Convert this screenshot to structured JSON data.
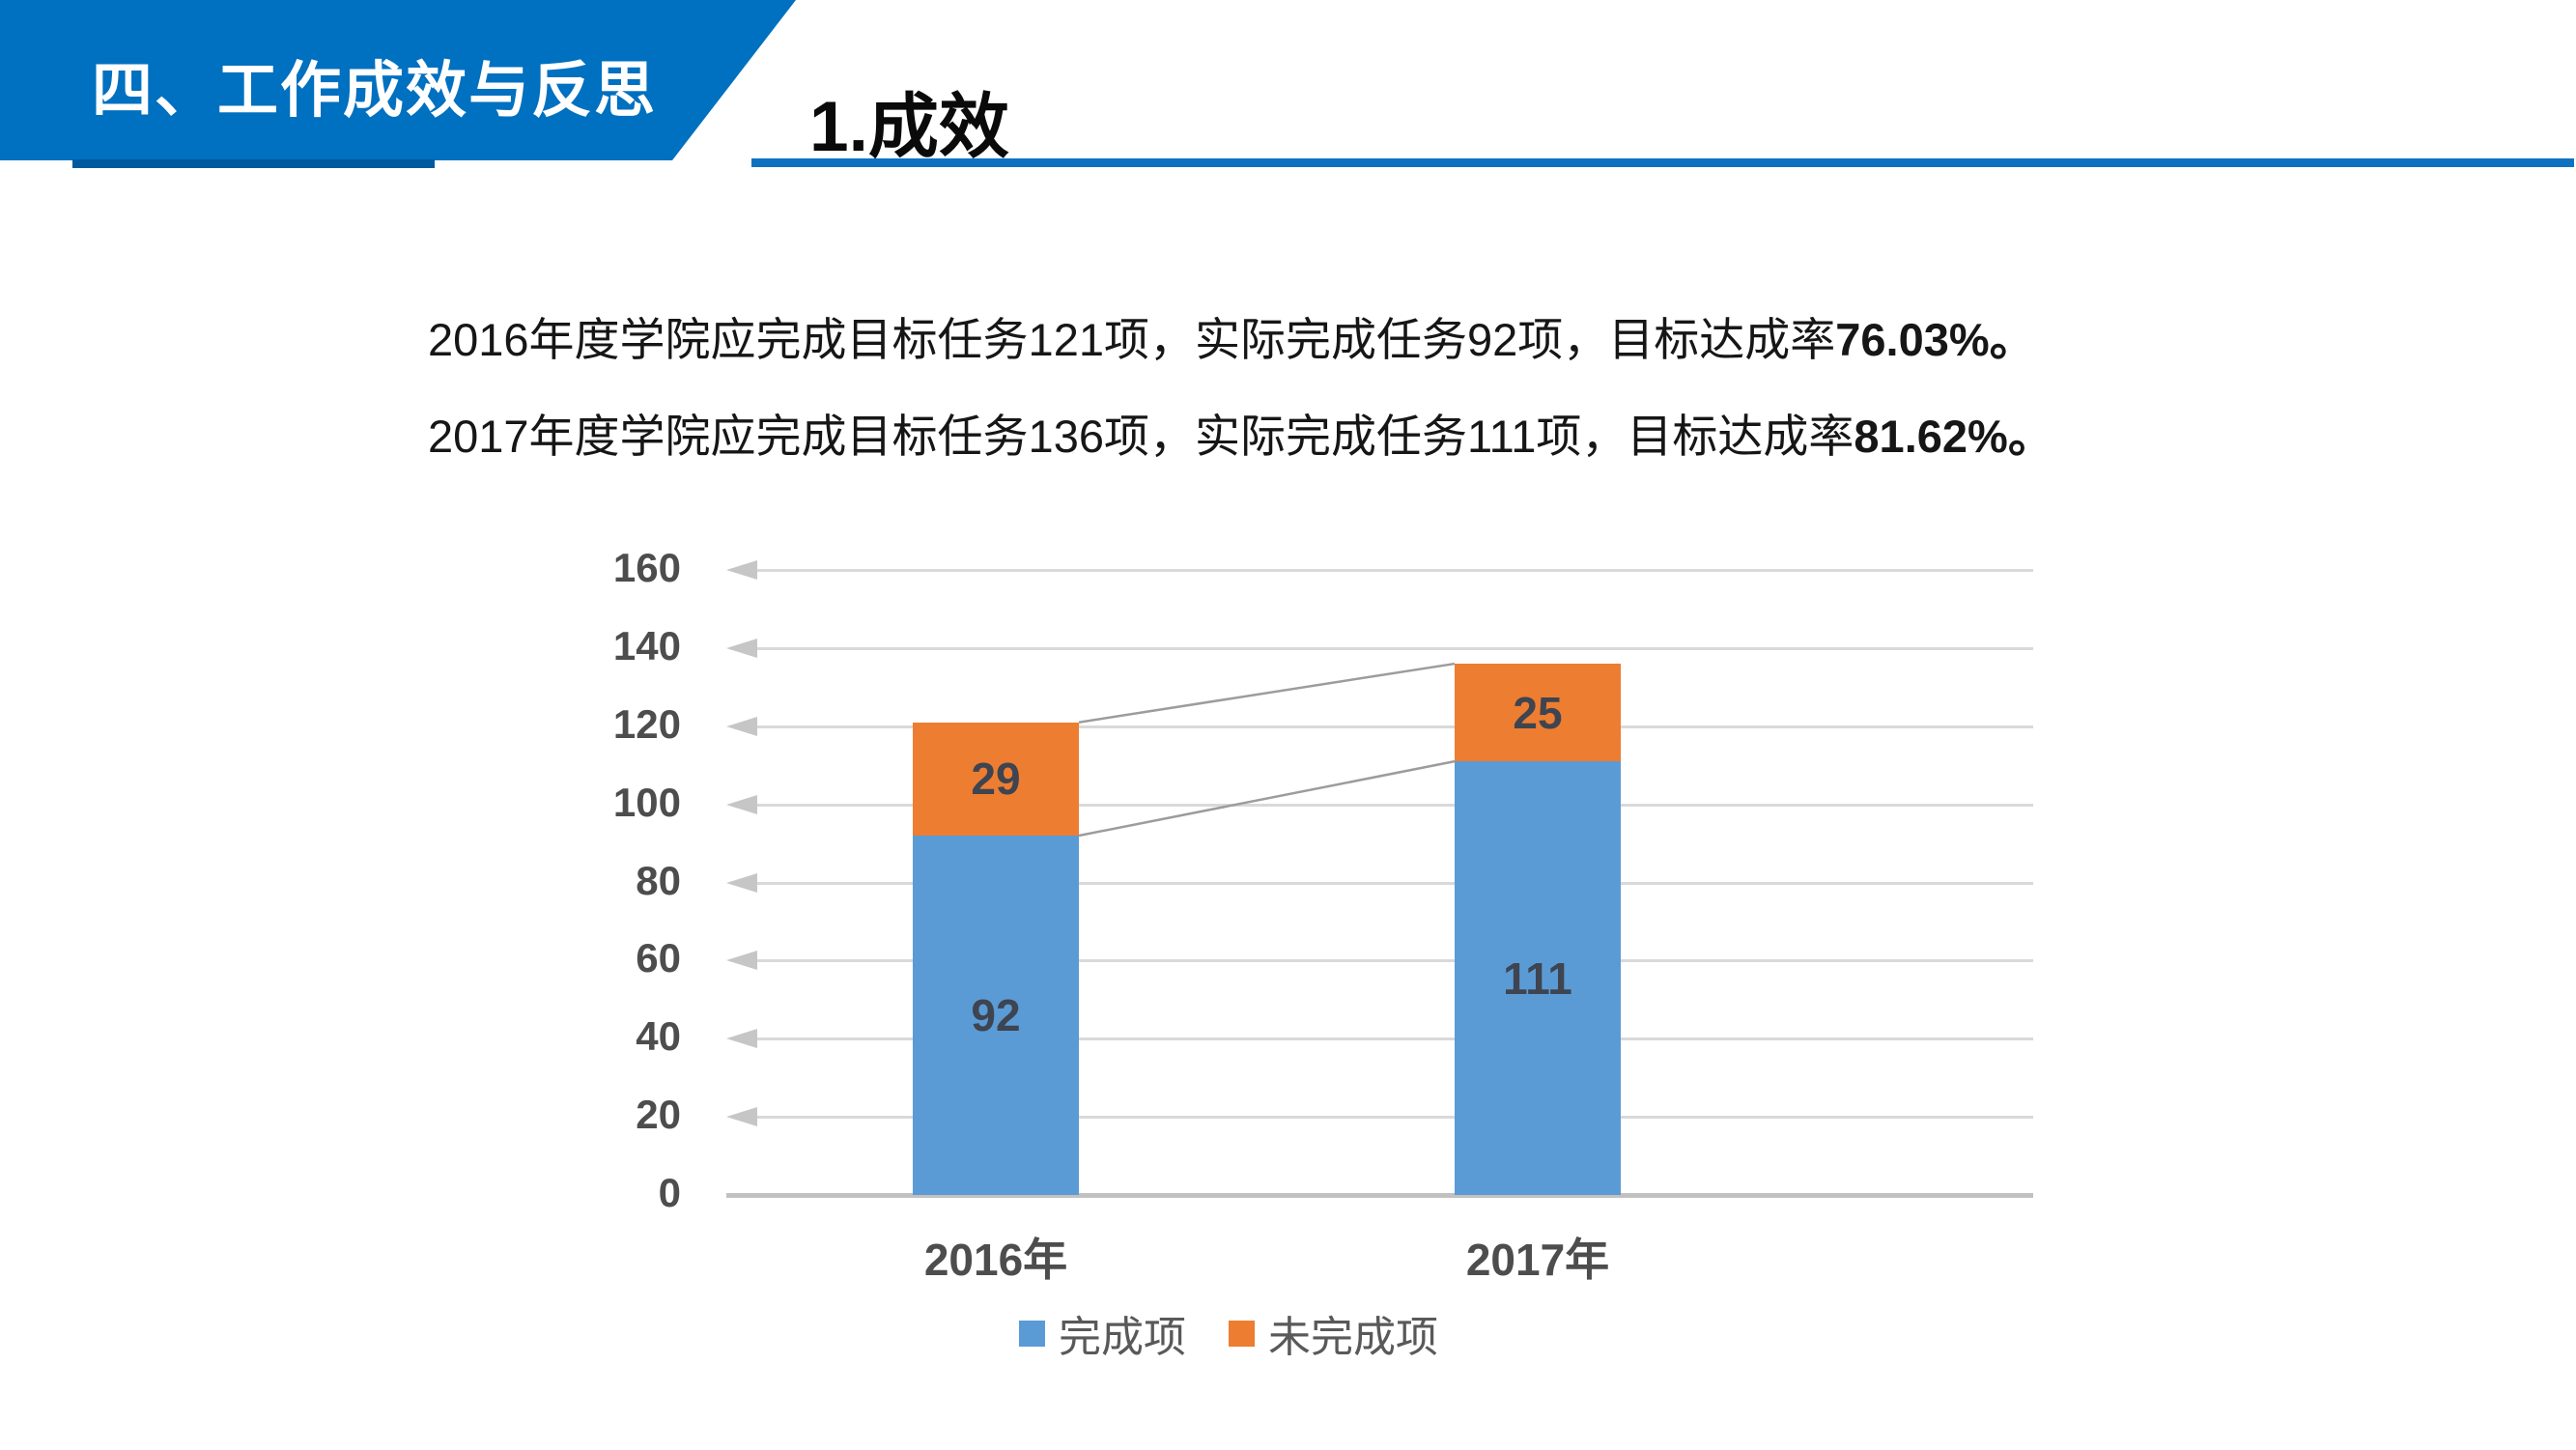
{
  "header": {
    "banner_label": "四、工作成效与反思",
    "section_title": "1.成效",
    "banner_color": "#0070C0",
    "banner_shadow_color": "#005A9E",
    "underline_color": "#0F72C1"
  },
  "paragraphs": [
    {
      "text": "2016年度学院应完成目标任务121项，实际完成任务92项，目标达成率",
      "bold": "76.03%。"
    },
    {
      "text": "2017年度学院应完成目标任务136项，实际完成任务111项，目标达成率",
      "bold": "81.62%。"
    }
  ],
  "chart_data": {
    "type": "bar",
    "stacked": true,
    "categories": [
      "2016年",
      "2017年"
    ],
    "series": [
      {
        "name": "完成项",
        "color": "#5B9BD5",
        "values": [
          92,
          111
        ]
      },
      {
        "name": "未完成项",
        "color": "#ED7D31",
        "values": [
          29,
          25
        ]
      }
    ],
    "totals": [
      121,
      136
    ],
    "title": "",
    "xlabel": "",
    "ylabel": "",
    "ylim": [
      0,
      160
    ],
    "yticks": [
      0,
      20,
      40,
      60,
      80,
      100,
      120,
      140,
      160
    ],
    "grid": true,
    "gridline_color": "#d9d9d9",
    "connector_line_color": "#9c9c9c",
    "series_connector_lines": true,
    "legend_position": "bottom"
  }
}
